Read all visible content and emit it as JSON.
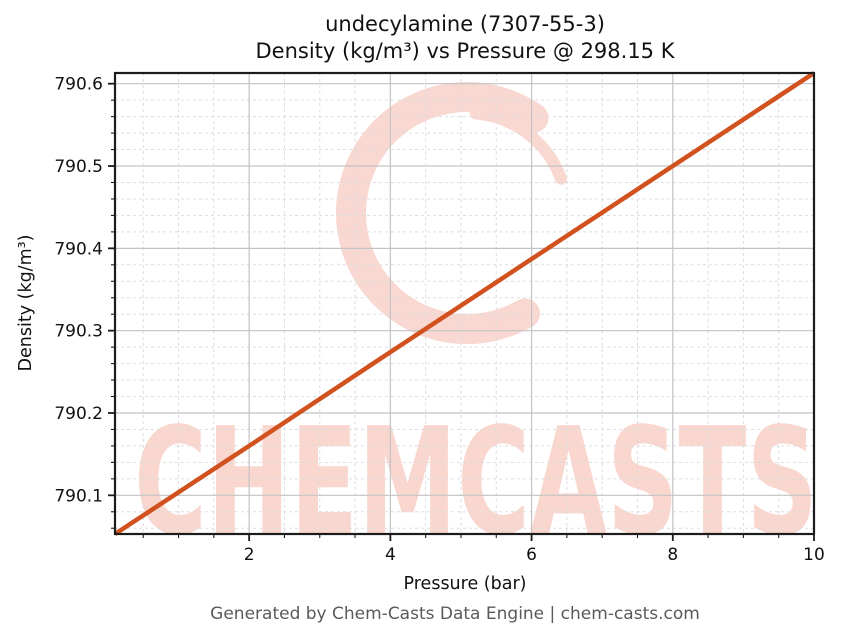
{
  "title": {
    "line1": "undecylamine (7307-55-3)",
    "line2": "Density (kg/m³) vs Pressure @ 298.15 K"
  },
  "footer": "Generated by Chem-Casts Data Engine | chem-casts.com",
  "watermark": {
    "text": "CHEMCASTS",
    "logo": "brush-circle",
    "text_color": "#f9d6ce",
    "logo_color": "#f9d8d1"
  },
  "colors": {
    "line": "#d1511f",
    "grid_major": "#c3c3c3",
    "grid_minor": "#dddddd",
    "spine": "#1c1c1c",
    "tick_label": "#111111",
    "footer_text": "#5a5a5a"
  },
  "chart_data": {
    "type": "line",
    "title": "undecylamine (7307-55-3)\nDensity (kg/m³) vs Pressure @ 298.15 K",
    "xlabel": "Pressure (bar)",
    "ylabel": "Density (kg/m³)",
    "xlim": [
      0.1,
      10
    ],
    "ylim": [
      790.053,
      790.613
    ],
    "x_ticks": [
      2,
      4,
      6,
      8,
      10
    ],
    "x_tick_labels": [
      "2",
      "4",
      "6",
      "8",
      "10"
    ],
    "y_ticks": [
      790.1,
      790.2,
      790.3,
      790.4,
      790.5,
      790.6
    ],
    "y_tick_labels": [
      "790.1",
      "790.2",
      "790.3",
      "790.4",
      "790.5",
      "790.6"
    ],
    "x_minor_step": 0.5,
    "y_minor_step": 0.02,
    "grid": true,
    "legend": "none",
    "series": [
      {
        "name": "density",
        "color": "#d1511f",
        "x": [
          0.1,
          2,
          4,
          6,
          8,
          10
        ],
        "y": [
          790.053,
          790.16,
          790.274,
          790.387,
          790.5,
          790.613
        ]
      }
    ]
  }
}
